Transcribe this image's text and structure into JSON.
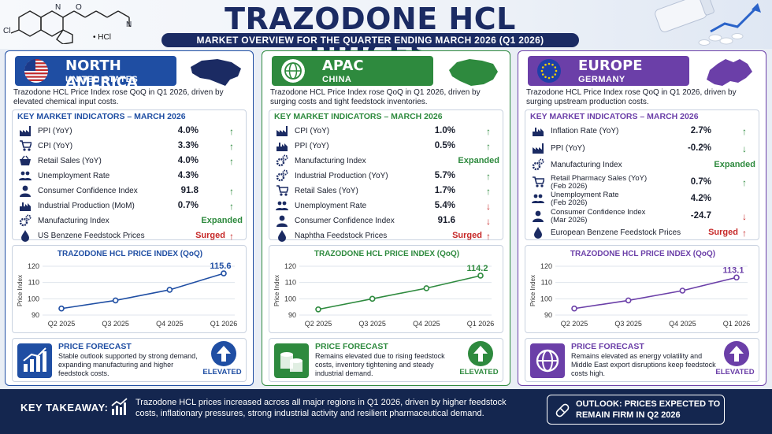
{
  "header": {
    "title": "TRAZODONE HCL PRICES",
    "subtitle": "MARKET OVERVIEW FOR THE QUARTER ENDING MARCH 2026 (Q1 2026)",
    "salt_label": "• HCl",
    "chem_atom_n": "N",
    "chem_atom_o": "O",
    "chem_atom_cl": "Cl",
    "chem_atom_n2": "N"
  },
  "colors": {
    "navy": "#1b2b63",
    "na": "#1f4ea3",
    "apac": "#2e8a3e",
    "eu": "#6b3fa8",
    "up": "#2e8a3e",
    "down": "#c62828"
  },
  "panels": [
    {
      "key": "na",
      "region": "NORTH AMERICA",
      "country": "UNITED STATES",
      "description": "Trazodone HCL Price Index rose QoQ in Q1 2026, driven by elevated chemical input costs.",
      "kmi_title": "KEY MARKET INDICATORS – MARCH 2026",
      "indicators": [
        {
          "icon": "factory-icon",
          "label": "PPI (YoY)",
          "value": "4.0%",
          "trend": "up"
        },
        {
          "icon": "cart-icon",
          "label": "CPI (YoY)",
          "value": "3.3%",
          "trend": "up"
        },
        {
          "icon": "basket-icon",
          "label": "Retail Sales (YoY)",
          "value": "4.0%",
          "trend": "up"
        },
        {
          "icon": "people-icon",
          "label": "Unemployment Rate",
          "value": "4.3%",
          "trend": ""
        },
        {
          "icon": "person-icon",
          "label": "Consumer Confidence Index",
          "value": "91.8",
          "trend": "up"
        },
        {
          "icon": "industry-icon",
          "label": "Industrial Production (MoM)",
          "value": "0.7%",
          "trend": "up"
        },
        {
          "icon": "gears-icon",
          "label": "Manufacturing Index",
          "text": "Expanded",
          "text_color": "green",
          "trend": ""
        },
        {
          "icon": "drop-icon",
          "label": "US Benzene Feedstock Prices",
          "text": "Surged",
          "text_color": "red",
          "trend": "up-red"
        }
      ],
      "chart_title": "TRAZODONE HCL PRICE INDEX (QoQ)",
      "forecast_title": "PRICE FORECAST",
      "forecast_text": "Stable outlook supported by strong demand, expanding manufacturing and higher feedstock costs.",
      "forecast_badge": "ELEVATED"
    },
    {
      "key": "ap",
      "region": "APAC",
      "country": "CHINA",
      "description": "Trazodone HCL Price Index rose QoQ in Q1 2026, driven by surging costs and tight feedstock inventories.",
      "kmi_title": "KEY MARKET INDICATORS – MARCH 2026",
      "indicators": [
        {
          "icon": "factory-icon",
          "label": "CPI (YoY)",
          "value": "1.0%",
          "trend": "up"
        },
        {
          "icon": "industry-icon",
          "label": "PPI (YoY)",
          "value": "0.5%",
          "trend": "up"
        },
        {
          "icon": "gears-icon",
          "label": "Manufacturing Index",
          "text": "Expanded",
          "text_color": "green",
          "trend": ""
        },
        {
          "icon": "gears-icon",
          "label": "Industrial Production (YoY)",
          "value": "5.7%",
          "trend": "up"
        },
        {
          "icon": "cart-icon",
          "label": "Retail Sales (YoY)",
          "value": "1.7%",
          "trend": "up"
        },
        {
          "icon": "people-icon",
          "label": "Unemployment Rate",
          "value": "5.4%",
          "trend": "down"
        },
        {
          "icon": "person-icon",
          "label": "Consumer Confidence Index",
          "value": "91.6",
          "trend": "down"
        },
        {
          "icon": "drop-icon",
          "label": "Naphtha Feedstock Prices",
          "text": "Surged",
          "text_color": "red",
          "trend": "up-red"
        }
      ],
      "chart_title": "TRAZODONE HCL PRICE INDEX (QoQ)",
      "forecast_title": "PRICE FORECAST",
      "forecast_text": "Remains elevated due to rising feedstock costs, inventory tightening and steady industrial demand.",
      "forecast_badge": "ELEVATED"
    },
    {
      "key": "eu",
      "region": "EUROPE",
      "country": "GERMANY",
      "description": "Trazodone HCL Price Index rose QoQ in Q1 2026, driven by surging upstream production costs.",
      "kmi_title": "KEY MARKET INDICATORS – MARCH 2026",
      "indicators": [
        {
          "icon": "industry-icon",
          "label": "Inflation Rate (YoY)",
          "value": "2.7%",
          "trend": "up"
        },
        {
          "icon": "factory-icon",
          "label": "PPI (YoY)",
          "value": "-0.2%",
          "trend": "down-green"
        },
        {
          "icon": "gears-icon",
          "label": "Manufacturing Index",
          "text": "Expanded",
          "text_color": "green",
          "trend": ""
        },
        {
          "icon": "cart-icon",
          "label": "Retail Pharmacy Sales (YoY)",
          "sub": "(Feb 2026)",
          "value": "0.7%",
          "trend": "up"
        },
        {
          "icon": "people-icon",
          "label": "Unemployment Rate",
          "sub": "(Feb 2026)",
          "value": "4.2%",
          "trend": ""
        },
        {
          "icon": "person-icon",
          "label": "Consumer Confidence Index",
          "sub": "(Mar 2026)",
          "value": "-24.7",
          "trend": "down"
        },
        {
          "icon": "drop-icon",
          "label": "European Benzene Feedstock Prices",
          "text": "Surged",
          "text_color": "red",
          "trend": "up-red"
        }
      ],
      "chart_title": "TRAZODONE HCL PRICE INDEX (QoQ)",
      "forecast_title": "PRICE FORECAST",
      "forecast_text": "Remains elevated as energy volatility and Middle East export disruptions keep feedstock costs high.",
      "forecast_badge": "ELEVATED"
    }
  ],
  "chart_data": [
    {
      "type": "line",
      "categories": [
        "Q2 2025",
        "Q3 2025",
        "Q4 2025",
        "Q1 2026"
      ],
      "values": [
        94,
        99,
        105.5,
        115.6
      ],
      "ylabel": "Price Index",
      "ylim": [
        90,
        120
      ],
      "yticks": [
        90,
        100,
        110,
        120
      ],
      "end_label": "115.6"
    },
    {
      "type": "line",
      "categories": [
        "Q2 2025",
        "Q3 2025",
        "Q4 2025",
        "Q1 2026"
      ],
      "values": [
        93.5,
        100,
        106.5,
        114.2
      ],
      "ylabel": "Price Index",
      "ylim": [
        90,
        120
      ],
      "yticks": [
        90,
        100,
        110,
        120
      ],
      "end_label": "114.2"
    },
    {
      "type": "line",
      "categories": [
        "Q2 2025",
        "Q3 2025",
        "Q4 2025",
        "Q1 2026"
      ],
      "values": [
        94,
        99,
        105,
        113.1
      ],
      "ylabel": "Price Index",
      "ylim": [
        90,
        120
      ],
      "yticks": [
        90,
        100,
        110,
        120
      ],
      "end_label": "113.1"
    }
  ],
  "footer": {
    "key_takeaway_label": "KEY TAKEAWAY:",
    "key_takeaway_text": "Trazodone HCL prices increased across all major regions in Q1 2026, driven by higher feedstock costs, inflationary pressures, strong industrial activity and resilient pharmaceutical demand.",
    "outlook": "OUTLOOK: PRICES EXPECTED TO REMAIN FIRM IN Q2 2026"
  }
}
